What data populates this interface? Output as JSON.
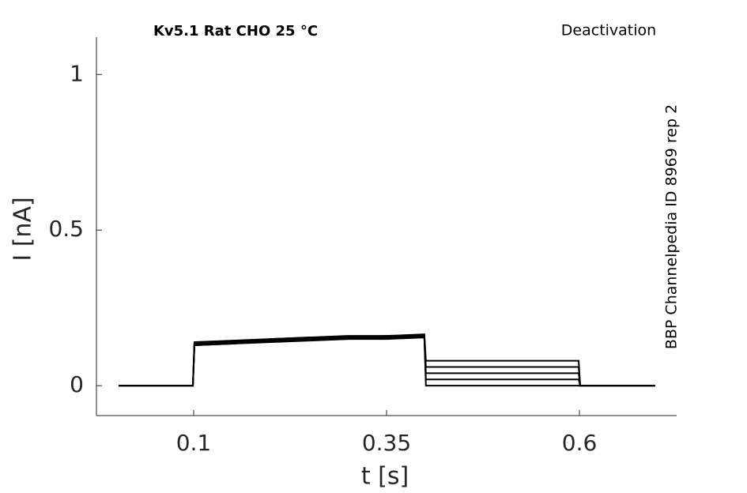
{
  "chart_data": {
    "type": "line",
    "title": "Kv5.1  Rat  CHO  25 °C",
    "subtitle": "Deactivation",
    "annotation": "BBP Channelpedia ID 8969 rep 2",
    "xlabel": "t [s]",
    "ylabel": "I [nA]",
    "x": [
      0.003,
      0.05,
      0.099,
      0.101,
      0.15,
      0.2,
      0.25,
      0.3,
      0.35,
      0.399,
      0.401,
      0.45,
      0.5,
      0.55,
      0.599,
      0.601,
      0.65,
      0.698
    ],
    "series": [
      {
        "color": "#000000",
        "values": [
          0,
          0,
          0,
          0.13,
          0.135,
          0.14,
          0.145,
          0.15,
          0.15,
          0.155,
          0,
          0,
          0,
          0,
          0,
          0,
          0,
          0
        ]
      },
      {
        "color": "#000000",
        "values": [
          0,
          0,
          0,
          0.13,
          0.135,
          0.145,
          0.15,
          0.15,
          0.155,
          0.155,
          0.02,
          0.02,
          0.02,
          0.02,
          0.02,
          0,
          0,
          0
        ]
      },
      {
        "color": "#000000",
        "values": [
          0,
          0,
          0,
          0.135,
          0.14,
          0.145,
          0.15,
          0.155,
          0.155,
          0.16,
          0.04,
          0.04,
          0.04,
          0.04,
          0.04,
          0,
          0,
          0
        ]
      },
      {
        "color": "#000000",
        "values": [
          0,
          0,
          0,
          0.135,
          0.14,
          0.15,
          0.155,
          0.155,
          0.16,
          0.16,
          0.06,
          0.06,
          0.06,
          0.06,
          0.06,
          0,
          0,
          0
        ]
      },
      {
        "color": "#000000",
        "values": [
          0,
          0,
          0,
          0.14,
          0.145,
          0.15,
          0.155,
          0.16,
          0.16,
          0.165,
          0.08,
          0.08,
          0.08,
          0.08,
          0.08,
          0,
          0,
          0
        ]
      }
    ],
    "xlim": [
      -0.026,
      0.726
    ],
    "ylim": [
      -0.096,
      1.12
    ],
    "xticks": [
      0.1,
      0.35,
      0.6
    ],
    "yticks": [
      0,
      0.5,
      1
    ]
  }
}
